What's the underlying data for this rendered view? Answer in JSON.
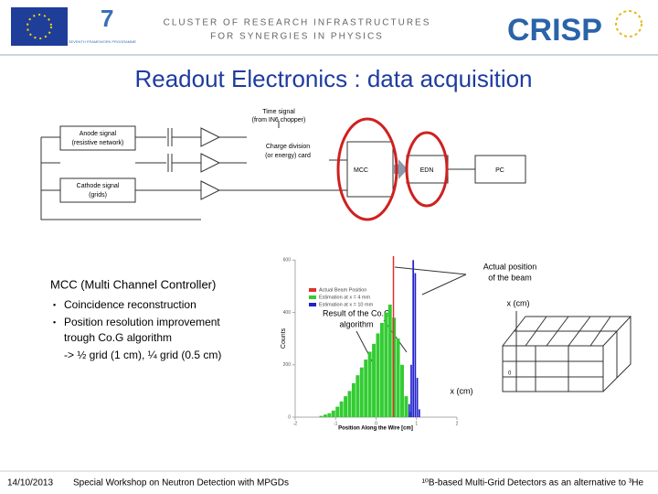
{
  "header": {
    "cluster_line1": "CLUSTER OF RESEARCH INFRASTRUCTURES",
    "cluster_line2": "FOR SYNERGIES IN PHYSICS",
    "logo": "CRISP",
    "fp7": "SEVENTH FRAMEWORK PROGRAMME"
  },
  "title": "Readout Electronics : data acquisition",
  "diagram": {
    "time_signal": [
      "Time signal",
      "(from IN6 chopper)"
    ],
    "anode": [
      "Anode signal",
      "(resistive network)"
    ],
    "charge": [
      "Charge division",
      "(or energy) card"
    ],
    "mcc": "MCC",
    "edn": "EDN",
    "pc": "PC",
    "cathode": [
      "Cathode signal",
      "(grids)"
    ]
  },
  "text": {
    "heading": "MCC (Multi Channel Controller)",
    "bullets": [
      "Coincidence reconstruction",
      "Position resolution improvement trough Co.G algorithm"
    ],
    "bullet2_lines": [
      "Position resolution improvement",
      "trough Co.G algorithm"
    ],
    "extra": "-> ½ grid (1 cm), ¼ grid (0.5 cm)"
  },
  "annotations": {
    "beam": [
      "Actual position",
      "of the beam"
    ],
    "cog": [
      "Result of the Co.G",
      "algorithm"
    ],
    "x_right": "x (cm)",
    "x_bottom": "x (cm)",
    "zero": "0"
  },
  "histogram": {
    "x_label": "Position Along the Wire [cm]",
    "y_label": "Counts",
    "xlim": [
      -2,
      2
    ],
    "ylim": [
      0,
      650
    ],
    "xticks": [
      -2,
      -1,
      0,
      1,
      2
    ],
    "yticks": [
      0,
      200,
      400,
      600
    ],
    "beam_position": 0.43,
    "legend": [
      {
        "name": "Actual Beam Position",
        "color": "#e03030"
      },
      {
        "name": "Estimation at x = 4 mm",
        "color": "#33cc33"
      },
      {
        "name": "Estimation at x = 10 mm",
        "color": "#2222cc"
      }
    ],
    "green_bins": [
      -1.4,
      -1.3,
      -1.2,
      -1.1,
      -1.0,
      -0.9,
      -0.8,
      -0.7,
      -0.6,
      -0.5,
      -0.4,
      -0.3,
      -0.2,
      -0.1,
      0.0,
      0.1,
      0.2,
      0.3,
      0.4,
      0.5,
      0.6,
      0.7,
      0.8,
      0.9
    ],
    "green_counts": [
      5,
      10,
      15,
      25,
      40,
      60,
      80,
      100,
      130,
      160,
      190,
      220,
      250,
      280,
      320,
      360,
      400,
      430,
      380,
      300,
      200,
      80,
      20
    ],
    "blue_bins": [
      0.8,
      0.85,
      0.9,
      0.95,
      1.0,
      1.05,
      1.1
    ],
    "blue_counts": [
      50,
      200,
      600,
      550,
      150,
      30
    ]
  },
  "footer": {
    "date": "14/10/2013",
    "workshop": "Special Workshop on Neutron Detection with MPGDs",
    "topic": "¹⁰B-based Multi-Grid Detectors as an alternative to ³He"
  }
}
